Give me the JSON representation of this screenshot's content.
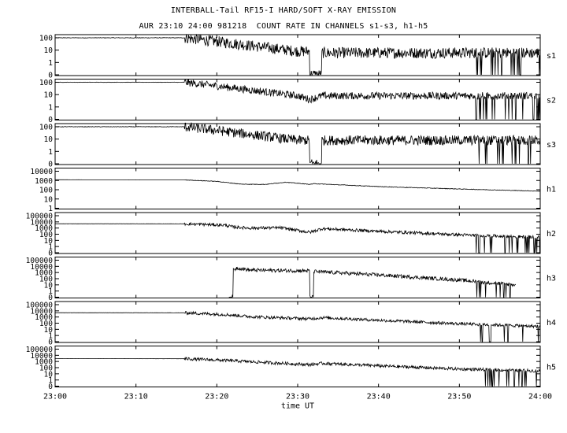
{
  "chart_data": {
    "type": "line",
    "title": "INTERBALL-Tail RF15-I HARD/SOFT X-RAY EMISSION",
    "subtitle": "AUR 23:10 24:00 981218  COUNT RATE IN CHANNELS s1-s3, h1-h5",
    "xlabel": "time UT",
    "x_ticks": [
      "23:00",
      "23:10",
      "23:20",
      "23:30",
      "23:40",
      "23:50",
      "24:00"
    ],
    "x_range_min": [
      0,
      60
    ],
    "y_scale": "log",
    "grid": false,
    "panels": [
      {
        "name": "s1",
        "y_ticks": [
          "100",
          "10",
          "1",
          "0"
        ],
        "x_min": [
          0,
          16,
          20,
          25,
          30,
          31.5,
          33,
          40,
          50,
          60
        ],
        "counts": [
          100,
          100,
          50,
          20,
          8,
          0,
          6,
          6,
          6,
          6
        ],
        "noise_decades": 0.45
      },
      {
        "name": "s2",
        "y_ticks": [
          "100",
          "10",
          "1",
          "0"
        ],
        "x_min": [
          0,
          16,
          20,
          25,
          30,
          31.5,
          33,
          40,
          50,
          60
        ],
        "counts": [
          100,
          100,
          50,
          20,
          8,
          4,
          8,
          8,
          8,
          8
        ],
        "noise_decades": 0.3
      },
      {
        "name": "s3",
        "y_ticks": [
          "100",
          "10",
          "1",
          "0"
        ],
        "x_min": [
          0,
          16,
          20,
          25,
          30,
          31.5,
          33,
          40,
          50,
          60
        ],
        "counts": [
          100,
          100,
          50,
          20,
          8,
          0,
          8,
          8,
          8,
          8
        ],
        "noise_decades": 0.4
      },
      {
        "name": "h1",
        "y_ticks": [
          "10000",
          "1000",
          "100",
          "10",
          "1"
        ],
        "x_min": [
          0,
          16,
          20,
          23,
          26,
          28.5,
          31.5,
          32,
          40,
          50,
          60
        ],
        "counts": [
          1200,
          1150,
          800,
          400,
          380,
          650,
          380,
          450,
          220,
          120,
          70
        ],
        "noise_decades": 0.03
      },
      {
        "name": "h2",
        "y_ticks": [
          "100000",
          "10000",
          "1000",
          "100",
          "10",
          "1",
          "0"
        ],
        "x_min": [
          0,
          16,
          21,
          22,
          24,
          28,
          31.5,
          33,
          40,
          50,
          60
        ],
        "counts": [
          5000,
          4800,
          3000,
          1500,
          1000,
          1100,
          200,
          800,
          300,
          80,
          30
        ],
        "noise_decades": 0.25
      },
      {
        "name": "h3",
        "y_ticks": [
          "100000",
          "10000",
          "1000",
          "100",
          "10",
          "1",
          "0"
        ],
        "x_min": [
          21.5,
          22,
          22.5,
          24,
          30,
          31.5,
          32,
          40,
          50,
          57
        ],
        "counts": [
          0,
          2000,
          6000,
          2500,
          2000,
          0,
          1500,
          400,
          60,
          10
        ],
        "noise_decades": 0.3
      },
      {
        "name": "h4",
        "y_ticks": [
          "100000",
          "10000",
          "1000",
          "100",
          "10",
          "1",
          "0"
        ],
        "x_min": [
          0,
          16,
          21,
          24,
          26,
          31.5,
          33,
          40,
          50,
          60
        ],
        "counts": [
          5000,
          4800,
          2500,
          1200,
          900,
          500,
          800,
          300,
          80,
          30
        ],
        "noise_decades": 0.25
      },
      {
        "name": "h5",
        "y_ticks": [
          "100000",
          "10000",
          "1000",
          "100",
          "10",
          "1",
          "0"
        ],
        "x_min": [
          0,
          16,
          21,
          26,
          31.5,
          33,
          40,
          50,
          60
        ],
        "counts": [
          3000,
          2800,
          1500,
          700,
          300,
          500,
          200,
          60,
          30
        ],
        "noise_decades": 0.25
      }
    ]
  }
}
